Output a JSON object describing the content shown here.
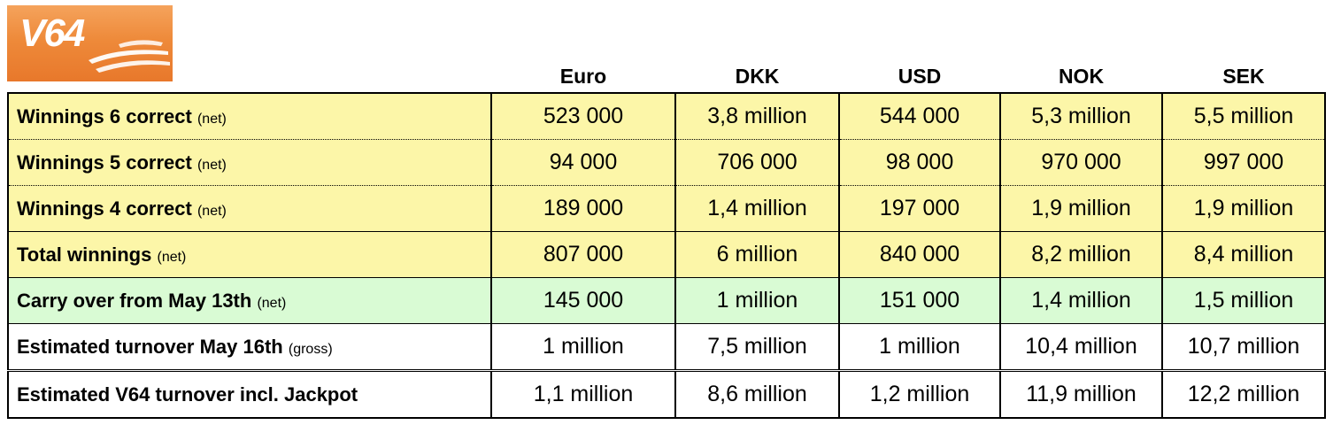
{
  "logo": {
    "text": "V64"
  },
  "table": {
    "columns": [
      "Euro",
      "DKK",
      "USD",
      "NOK",
      "SEK"
    ],
    "rows": [
      {
        "label": "Winnings 6 correct",
        "note": "(net)",
        "color": "#fcf6a8",
        "values": [
          "523 000",
          "3,8 million",
          "544 000",
          "5,3 million",
          "5,5 million"
        ]
      },
      {
        "label": "Winnings 5 correct",
        "note": "(net)",
        "color": "#fcf6a8",
        "values": [
          "94 000",
          "706 000",
          "98 000",
          "970 000",
          "997 000"
        ]
      },
      {
        "label": "Winnings 4 correct",
        "note": "(net)",
        "color": "#fcf6a8",
        "values": [
          "189 000",
          "1,4 million",
          "197 000",
          "1,9 million",
          "1,9 million"
        ]
      },
      {
        "label": "Total winnings",
        "note": "(net)",
        "color": "#fcf6a8",
        "values": [
          "807 000",
          "6 million",
          "840 000",
          "8,2 million",
          "8,4 million"
        ]
      },
      {
        "label": "Carry over from May 13th",
        "note": "(net)",
        "color": "#d9fbd4",
        "values": [
          "145 000",
          "1 million",
          "151 000",
          "1,4 million",
          "1,5 million"
        ]
      },
      {
        "label": "Estimated turnover May 16th",
        "note": "(gross)",
        "color": "#ffffff",
        "values": [
          "1 million",
          "7,5 million",
          "1 million",
          "10,4 million",
          "10,7 million"
        ]
      },
      {
        "label": "Estimated V64 turnover incl. Jackpot",
        "note": "",
        "color": "#ffffff",
        "values": [
          "1,1 million",
          "8,6 million",
          "1,2 million",
          "11,9 million",
          "12,2 million"
        ]
      }
    ]
  }
}
